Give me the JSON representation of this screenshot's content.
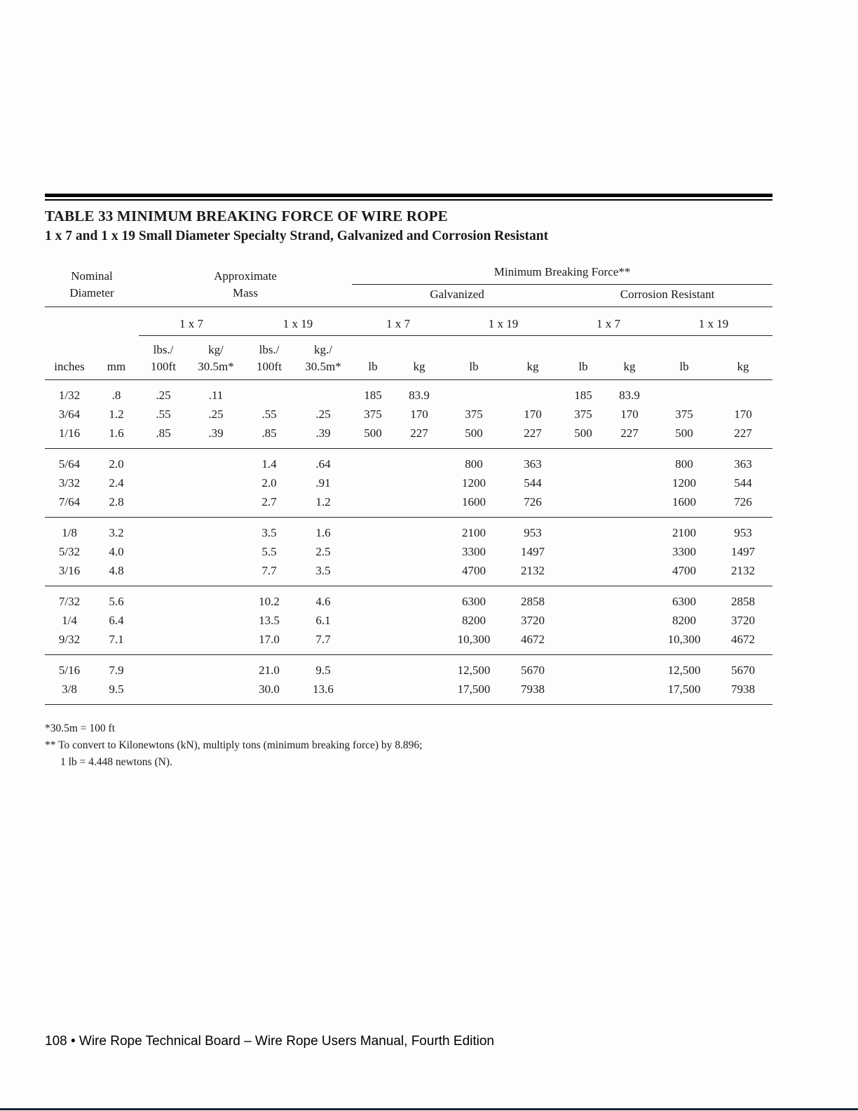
{
  "doc": {
    "title": "TABLE 33  MINIMUM BREAKING FORCE OF WIRE ROPE",
    "subtitle": "1 x 7 and 1 x 19 Small Diameter Specialty Strand, Galvanized and Corrosion Resistant",
    "footnotes": [
      "*30.5m = 100 ft",
      "** To convert to Kilonewtons (kN), multiply tons (minimum breaking force) by 8.896;",
      "1 lb = 4.448 newtons (N)."
    ],
    "footer": "108 • Wire Rope Technical Board – Wire Rope Users Manual, Fourth Edition"
  },
  "table": {
    "headers": {
      "nominal_diameter": "Nominal\nDiameter",
      "approximate_mass": "Approximate\nMass",
      "min_breaking_force": "Minimum Breaking Force**",
      "galvanized": "Galvanized",
      "corrosion_resistant": "Corrosion Resistant",
      "s1x7": "1 x 7",
      "s1x19": "1 x 19",
      "units": [
        "inches",
        "mm",
        "lbs./\n100ft",
        "kg/\n30.5m*",
        "lbs./\n100ft",
        "kg./\n30.5m*",
        "lb",
        "kg",
        "lb",
        "kg",
        "lb",
        "kg",
        "lb",
        "kg"
      ]
    },
    "groups": [
      [
        [
          "1/32",
          ".8",
          ".25",
          ".11",
          "",
          "",
          "185",
          "83.9",
          "",
          "",
          "185",
          "83.9",
          "",
          ""
        ],
        [
          "3/64",
          "1.2",
          ".55",
          ".25",
          ".55",
          ".25",
          "375",
          "170",
          "375",
          "170",
          "375",
          "170",
          "375",
          "170"
        ],
        [
          "1/16",
          "1.6",
          ".85",
          ".39",
          ".85",
          ".39",
          "500",
          "227",
          "500",
          "227",
          "500",
          "227",
          "500",
          "227"
        ]
      ],
      [
        [
          "5/64",
          "2.0",
          "",
          "",
          "1.4",
          ".64",
          "",
          "",
          "800",
          "363",
          "",
          "",
          "800",
          "363"
        ],
        [
          "3/32",
          "2.4",
          "",
          "",
          "2.0",
          ".91",
          "",
          "",
          "1200",
          "544",
          "",
          "",
          "1200",
          "544"
        ],
        [
          "7/64",
          "2.8",
          "",
          "",
          "2.7",
          "1.2",
          "",
          "",
          "1600",
          "726",
          "",
          "",
          "1600",
          "726"
        ]
      ],
      [
        [
          "1/8",
          "3.2",
          "",
          "",
          "3.5",
          "1.6",
          "",
          "",
          "2100",
          "953",
          "",
          "",
          "2100",
          "953"
        ],
        [
          "5/32",
          "4.0",
          "",
          "",
          "5.5",
          "2.5",
          "",
          "",
          "3300",
          "1497",
          "",
          "",
          "3300",
          "1497"
        ],
        [
          "3/16",
          "4.8",
          "",
          "",
          "7.7",
          "3.5",
          "",
          "",
          "4700",
          "2132",
          "",
          "",
          "4700",
          "2132"
        ]
      ],
      [
        [
          "7/32",
          "5.6",
          "",
          "",
          "10.2",
          "4.6",
          "",
          "",
          "6300",
          "2858",
          "",
          "",
          "6300",
          "2858"
        ],
        [
          "1/4",
          "6.4",
          "",
          "",
          "13.5",
          "6.1",
          "",
          "",
          "8200",
          "3720",
          "",
          "",
          "8200",
          "3720"
        ],
        [
          "9/32",
          "7.1",
          "",
          "",
          "17.0",
          "7.7",
          "",
          "",
          "10,300",
          "4672",
          "",
          "",
          "10,300",
          "4672"
        ]
      ],
      [
        [
          "5/16",
          "7.9",
          "",
          "",
          "21.0",
          "9.5",
          "",
          "",
          "12,500",
          "5670",
          "",
          "",
          "12,500",
          "5670"
        ],
        [
          "3/8",
          "9.5",
          "",
          "",
          "30.0",
          "13.6",
          "",
          "",
          "17,500",
          "7938",
          "",
          "",
          "17,500",
          "7938"
        ]
      ]
    ]
  }
}
